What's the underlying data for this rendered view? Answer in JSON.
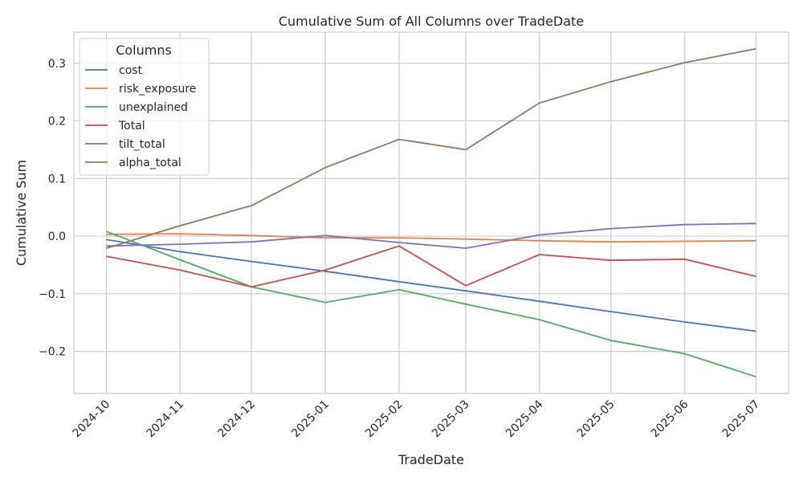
{
  "chart_data": {
    "type": "line",
    "title": "Cumulative Sum of All Columns over TradeDate",
    "xlabel": "TradeDate",
    "ylabel": "Cumulative Sum",
    "x": [
      "2024-10-01",
      "2024-11-01",
      "2024-12-01",
      "2025-01-01",
      "2025-02-01",
      "2025-03-01",
      "2025-04-01",
      "2025-05-01",
      "2025-06-01",
      "2025-07-01"
    ],
    "xtick_labels": [
      "2024-10",
      "2024-11",
      "2024-12",
      "2025-01",
      "2025-02",
      "2025-03",
      "2025-04",
      "2025-05",
      "2025-06",
      "2025-07"
    ],
    "yticks": [
      -0.2,
      -0.1,
      0.0,
      0.1,
      0.2,
      0.3
    ],
    "ytick_labels": [
      "−0.2",
      "−0.1",
      "0.0",
      "0.1",
      "0.2",
      "0.3"
    ],
    "ylim": [
      -0.273,
      0.354
    ],
    "grid": true,
    "legend": {
      "title": "Columns",
      "placement": "top-left"
    },
    "series": [
      {
        "name": "cost",
        "color": "#4c72b0",
        "values": [
          -0.006,
          -0.027,
          -0.044,
          -0.061,
          -0.079,
          -0.095,
          -0.113,
          -0.131,
          -0.149,
          -0.165
        ]
      },
      {
        "name": "risk_exposure",
        "color": "#dd8452",
        "values": [
          0.003,
          0.004,
          0.001,
          -0.003,
          -0.003,
          -0.005,
          -0.008,
          -0.01,
          -0.009,
          -0.008
        ]
      },
      {
        "name": "unexplained",
        "color": "#55a868",
        "values": [
          0.008,
          -0.041,
          -0.088,
          -0.115,
          -0.093,
          -0.118,
          -0.145,
          -0.181,
          -0.204,
          -0.244
        ]
      },
      {
        "name": "Total",
        "color": "#c44e52",
        "values": [
          -0.035,
          -0.059,
          -0.088,
          -0.059,
          -0.017,
          -0.086,
          -0.032,
          -0.042,
          -0.04,
          -0.07
        ]
      },
      {
        "name": "tilt_total",
        "color": "#8172b3",
        "values": [
          -0.017,
          -0.014,
          -0.01,
          0.001,
          -0.011,
          -0.021,
          0.002,
          0.013,
          0.02,
          0.022
        ]
      },
      {
        "name": "alpha_total",
        "color": "#937860",
        "values": [
          -0.021,
          0.018,
          0.053,
          0.119,
          0.168,
          0.15,
          0.231,
          0.268,
          0.301,
          0.325
        ]
      }
    ]
  }
}
